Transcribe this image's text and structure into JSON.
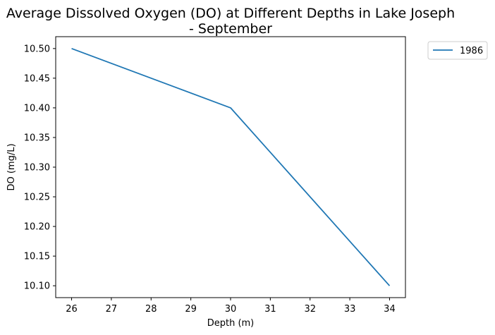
{
  "chart_data": {
    "type": "line",
    "title_lines": [
      "Average Dissolved Oxygen (DO) at Different Depths in Lake Joseph",
      "- September"
    ],
    "xlabel": "Depth (m)",
    "ylabel": "DO (mg/L)",
    "x": [
      26,
      30,
      34
    ],
    "series": [
      {
        "name": "1986",
        "values": [
          10.5,
          10.4,
          10.1
        ],
        "color": "#1f77b4"
      }
    ],
    "xlim": [
      25.6,
      34.4
    ],
    "ylim": [
      10.08,
      10.52
    ],
    "xticks": [
      26,
      27,
      28,
      29,
      30,
      31,
      32,
      33,
      34
    ],
    "yticks": [
      10.1,
      10.15,
      10.2,
      10.25,
      10.3,
      10.35,
      10.4,
      10.45,
      10.5
    ],
    "ytick_labels": [
      "10.10",
      "10.15",
      "10.20",
      "10.25",
      "10.30",
      "10.35",
      "10.40",
      "10.45",
      "10.50"
    ],
    "grid": false,
    "legend_position": "outside-top-right"
  }
}
